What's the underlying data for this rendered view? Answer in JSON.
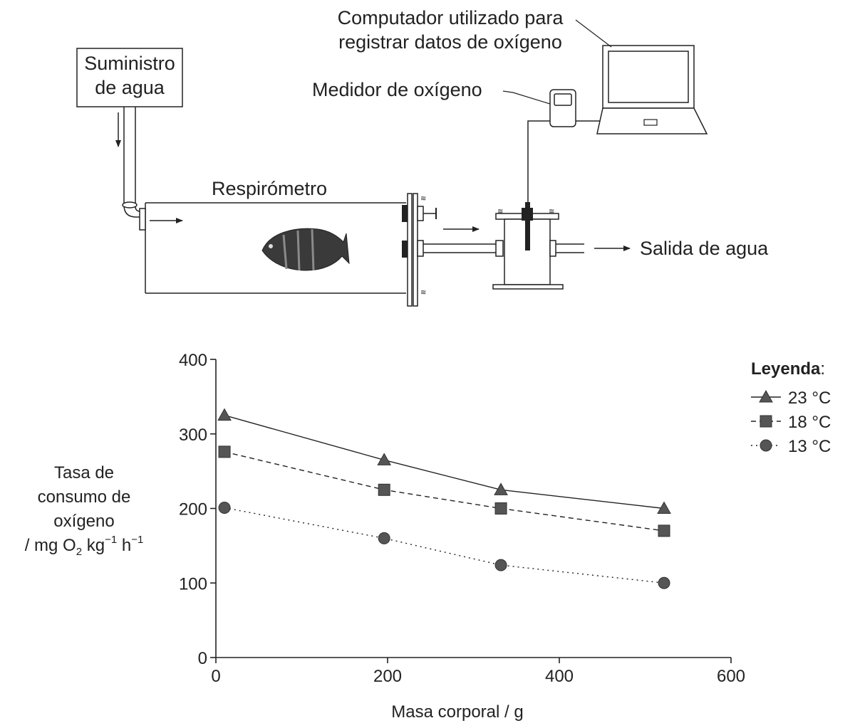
{
  "apparatus": {
    "water_supply": [
      "Suministro",
      "de agua"
    ],
    "computer": [
      "Computador utilizado para",
      "registrar datos de oxígeno"
    ],
    "oxygen_meter": "Medidor de oxígeno",
    "respirometer": "Respirómetro",
    "water_outlet": "Salida de agua"
  },
  "chart_data": {
    "type": "line",
    "x_label": "Masa corporal / g",
    "y_label_lines": [
      "Tasa de",
      "consumo de",
      "oxígeno"
    ],
    "y_units": {
      "prefix": "/ mg O",
      "o_sub": "2",
      "kg": " kg",
      "kg_sup": "−1",
      "h": " h",
      "h_sup": "−1"
    },
    "xlim": [
      0,
      600
    ],
    "ylim": [
      0,
      400
    ],
    "x_ticks": [
      "0",
      "200",
      "400",
      "600"
    ],
    "y_ticks": [
      "0",
      "100",
      "200",
      "300",
      "400"
    ],
    "legend_title": "Leyenda",
    "legend_colon": ":",
    "legend_position": "right",
    "series": [
      {
        "name": "23 °C",
        "marker": "triangle",
        "line": "solid",
        "x": [
          10,
          196,
          332,
          522
        ],
        "y": [
          325,
          265,
          225,
          200
        ]
      },
      {
        "name": "18 °C",
        "marker": "square",
        "line": "dashed",
        "x": [
          10,
          196,
          332,
          522
        ],
        "y": [
          276,
          225,
          200,
          170
        ]
      },
      {
        "name": "13 °C",
        "marker": "circle",
        "line": "dotted",
        "x": [
          10,
          196,
          332,
          522
        ],
        "y": [
          201,
          160,
          124,
          100
        ]
      }
    ],
    "marker_color": "#555555"
  }
}
